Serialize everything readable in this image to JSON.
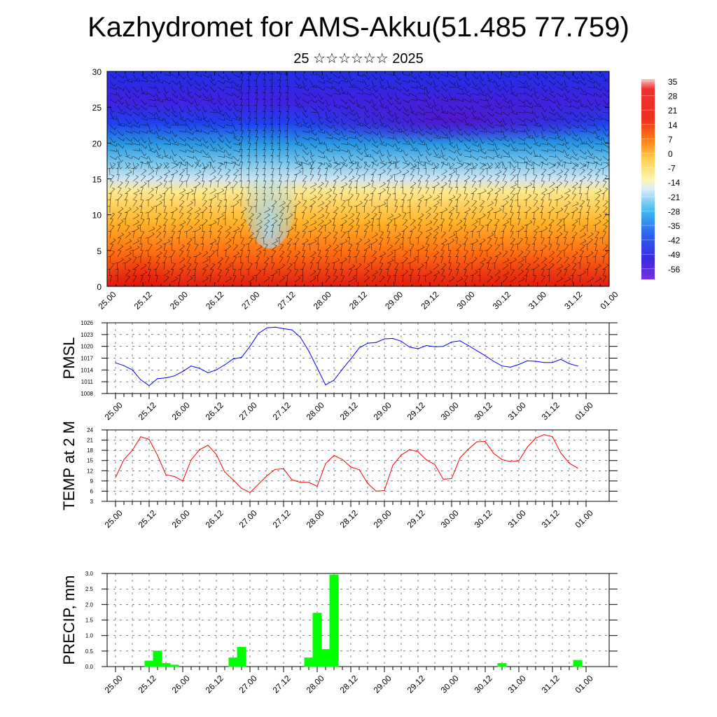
{
  "title": "Kazhydromet for AMS-Akku(51.485 77.759)",
  "subtitle": "25 ☆☆☆☆☆☆ 2025",
  "time_labels": [
    "25.00",
    "25.12",
    "26.00",
    "26.12",
    "27.00",
    "27.12",
    "28.00",
    "28.12",
    "29.00",
    "29.12",
    "30.00",
    "30.12",
    "31.00",
    "31.12",
    "01.00"
  ],
  "colors": {
    "pmsl_line": "#0000ff",
    "temp_line": "#ff0000",
    "precip_bar": "#00ff00"
  },
  "chart_data": [
    {
      "type": "heatmap",
      "name": "cross-section",
      "xlim": [
        0,
        14
      ],
      "ylim": [
        0,
        30
      ],
      "yticks": [
        0,
        5,
        10,
        15,
        20,
        25,
        30
      ],
      "colorbar_labels": [
        "35",
        "28",
        "21",
        "14",
        "7",
        "0",
        "-7",
        "-14",
        "-21",
        "-28",
        "-35",
        "-42",
        "-49",
        "-56"
      ],
      "colorbar_range": [
        -60,
        38
      ],
      "grid": false
    },
    {
      "type": "line",
      "name": "pmsl",
      "ylabel": "PMSL",
      "ylim": [
        1008,
        1026
      ],
      "yticks": [
        1008,
        1011,
        1014,
        1017,
        1020,
        1023,
        1026
      ],
      "grid": true,
      "x": [
        0,
        0.25,
        0.5,
        0.75,
        1,
        1.25,
        1.5,
        1.75,
        2,
        2.25,
        2.5,
        2.75,
        3,
        3.25,
        3.5,
        3.75,
        4,
        4.25,
        4.5,
        4.75,
        5,
        5.25,
        5.5,
        5.75,
        6,
        6.25,
        6.5,
        6.75,
        7,
        7.25,
        7.5,
        7.75,
        8,
        8.25,
        8.5,
        8.75,
        9,
        9.25,
        9.5,
        9.75,
        10,
        10.25,
        10.5,
        10.75,
        11,
        11.25,
        11.5,
        11.75,
        12,
        12.25,
        12.5,
        12.75,
        13,
        13.25,
        13.5,
        13.75
      ],
      "values": [
        1015.8,
        1015.1,
        1014,
        1011.5,
        1010,
        1011.8,
        1012,
        1012.5,
        1013.6,
        1015,
        1014.4,
        1013.3,
        1014,
        1015.3,
        1016.8,
        1017.2,
        1020,
        1023.3,
        1024.7,
        1024.9,
        1024.5,
        1024.2,
        1022.3,
        1018.8,
        1014.5,
        1010.2,
        1011.4,
        1014.2,
        1016.8,
        1019.6,
        1020.8,
        1021,
        1021.9,
        1022,
        1021.3,
        1019.8,
        1019.4,
        1020.2,
        1019.9,
        1020,
        1021.1,
        1021.4,
        1020.2,
        1018.9,
        1017.6,
        1016.2,
        1015,
        1014.7,
        1015.4,
        1016.3,
        1016.2,
        1015.9,
        1015.9,
        1016.7,
        1015.6,
        1015
      ]
    },
    {
      "type": "line",
      "name": "temp",
      "ylabel": "TEMP at 2 M",
      "ylim": [
        3,
        24
      ],
      "yticks": [
        3,
        6,
        9,
        12,
        15,
        18,
        21,
        24
      ],
      "grid": true,
      "x": [
        0,
        0.25,
        0.5,
        0.75,
        1,
        1.25,
        1.5,
        1.75,
        2,
        2.25,
        2.5,
        2.75,
        3,
        3.25,
        3.5,
        3.75,
        4,
        4.25,
        4.5,
        4.75,
        5,
        5.25,
        5.5,
        5.75,
        6,
        6.25,
        6.5,
        6.75,
        7,
        7.25,
        7.5,
        7.75,
        8,
        8.25,
        8.5,
        8.75,
        9,
        9.25,
        9.5,
        9.75,
        10,
        10.25,
        10.5,
        10.75,
        11,
        11.25,
        11.5,
        11.75,
        12,
        12.25,
        12.5,
        12.75,
        13,
        13.25,
        13.5,
        13.75
      ],
      "values": [
        10,
        15.3,
        18,
        22,
        21.2,
        16.5,
        10.8,
        10.3,
        9,
        15.2,
        18.2,
        19.5,
        16.8,
        11.6,
        9.3,
        6.8,
        5.6,
        8,
        10.5,
        12.4,
        12.6,
        9.3,
        8.6,
        8.6,
        7.4,
        14.1,
        16.5,
        15.3,
        13.1,
        12.3,
        8.3,
        6,
        6.2,
        13.6,
        16.6,
        18.2,
        17.6,
        15.2,
        13.8,
        9.5,
        9.7,
        15.8,
        18.4,
        20.5,
        20.6,
        17.1,
        15.3,
        14.7,
        14.9,
        18.9,
        21.6,
        22.6,
        22,
        17.2,
        14.2,
        12.8
      ]
    },
    {
      "type": "bar",
      "name": "precip",
      "ylabel": "PRECIP, mm",
      "ylim": [
        0,
        3.0
      ],
      "yticks": [
        "0.0",
        "0.5",
        "1.0",
        "1.5",
        "2.0",
        "2.5",
        "3.0"
      ],
      "grid": true,
      "x": [
        1,
        1.25,
        1.5,
        1.75,
        3.5,
        3.75,
        5.75,
        6,
        6.25,
        6.5,
        11.5,
        13.75
      ],
      "values": [
        0.18,
        0.5,
        0.1,
        0.05,
        0.28,
        0.62,
        0.28,
        1.72,
        0.55,
        2.95,
        0.1,
        0.2
      ]
    }
  ]
}
